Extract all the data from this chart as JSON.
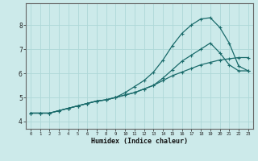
{
  "xlabel": "Humidex (Indice chaleur)",
  "ylabel": "",
  "xlim": [
    -0.5,
    23.5
  ],
  "ylim": [
    3.7,
    8.9
  ],
  "bg_color": "#cceaea",
  "grid_color": "#aed8d8",
  "line_color": "#1a6b6b",
  "x_ticks": [
    0,
    1,
    2,
    3,
    4,
    5,
    6,
    7,
    8,
    9,
    10,
    11,
    12,
    13,
    14,
    15,
    16,
    17,
    18,
    19,
    20,
    21,
    22,
    23
  ],
  "y_ticks": [
    4,
    5,
    6,
    7,
    8
  ],
  "line1_x": [
    0,
    1,
    2,
    3,
    4,
    5,
    6,
    7,
    8,
    9,
    10,
    11,
    12,
    13,
    14,
    15,
    16,
    17,
    18,
    19,
    20,
    21,
    22,
    23
  ],
  "line1_y": [
    4.35,
    4.35,
    4.35,
    4.45,
    4.55,
    4.65,
    4.75,
    4.85,
    4.9,
    5.0,
    5.1,
    5.2,
    5.35,
    5.5,
    5.7,
    5.9,
    6.05,
    6.2,
    6.35,
    6.45,
    6.55,
    6.6,
    6.65,
    6.65
  ],
  "line2_x": [
    0,
    1,
    2,
    3,
    4,
    5,
    6,
    7,
    8,
    9,
    10,
    11,
    12,
    13,
    14,
    15,
    16,
    17,
    18,
    19,
    20,
    21,
    22,
    23
  ],
  "line2_y": [
    4.35,
    4.35,
    4.35,
    4.45,
    4.55,
    4.65,
    4.75,
    4.85,
    4.9,
    5.0,
    5.1,
    5.2,
    5.35,
    5.5,
    5.8,
    6.15,
    6.5,
    6.75,
    7.0,
    7.25,
    6.85,
    6.35,
    6.1,
    6.1
  ],
  "line3_x": [
    0,
    1,
    2,
    3,
    4,
    5,
    6,
    7,
    8,
    9,
    10,
    11,
    12,
    13,
    14,
    15,
    16,
    17,
    18,
    19,
    20,
    21,
    22,
    23
  ],
  "line3_y": [
    4.35,
    4.35,
    4.35,
    4.45,
    4.55,
    4.65,
    4.75,
    4.85,
    4.9,
    5.0,
    5.2,
    5.45,
    5.7,
    6.05,
    6.55,
    7.15,
    7.65,
    8.0,
    8.25,
    8.3,
    7.9,
    7.25,
    6.3,
    6.1
  ]
}
